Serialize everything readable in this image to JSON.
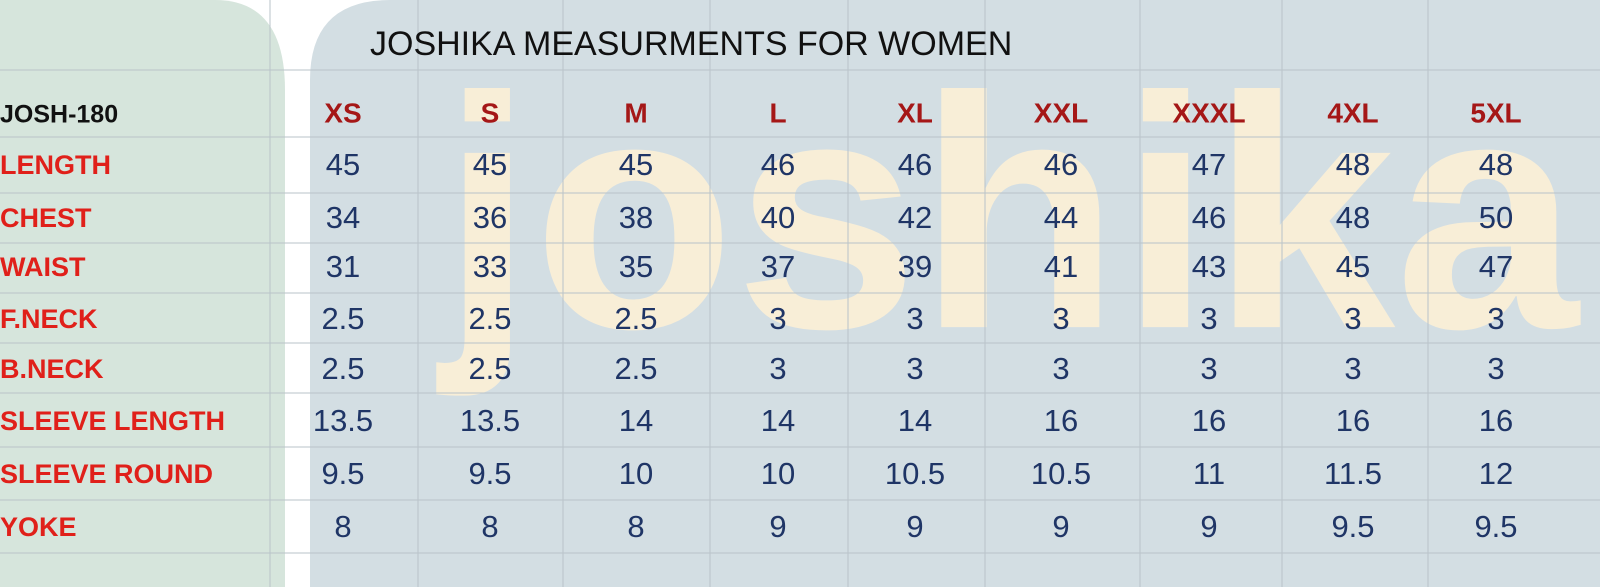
{
  "title": "JOSHIKA MEASURMENTS FOR WOMEN",
  "watermark": "joshika",
  "table": {
    "header": [
      "JOSH-180",
      "XS",
      "S",
      "M",
      "L",
      "XL",
      "XXL",
      "XXXL",
      "4XL",
      "5XL"
    ],
    "rows": [
      [
        "LENGTH",
        45,
        45,
        45,
        46,
        46,
        46,
        47,
        48,
        48
      ],
      [
        "CHEST",
        34,
        36,
        38,
        40,
        42,
        44,
        46,
        48,
        50
      ],
      [
        "WAIST",
        31,
        33,
        35,
        37,
        39,
        41,
        43,
        45,
        47
      ],
      [
        "F.NECK",
        2.5,
        2.5,
        2.5,
        3,
        3,
        3,
        3,
        3,
        3
      ],
      [
        "B.NECK",
        2.5,
        2.5,
        2.5,
        3,
        3,
        3,
        3,
        3,
        3
      ],
      [
        "SLEEVE LENGTH",
        13.5,
        13.5,
        14,
        14,
        14,
        16,
        16,
        16,
        16
      ],
      [
        "SLEEVE ROUND",
        9.5,
        9.5,
        10,
        10,
        10.5,
        10.5,
        11,
        11.5,
        12
      ],
      [
        "YOKE",
        8,
        8,
        8,
        9,
        9,
        9,
        9,
        9.5,
        9.5
      ]
    ]
  }
}
